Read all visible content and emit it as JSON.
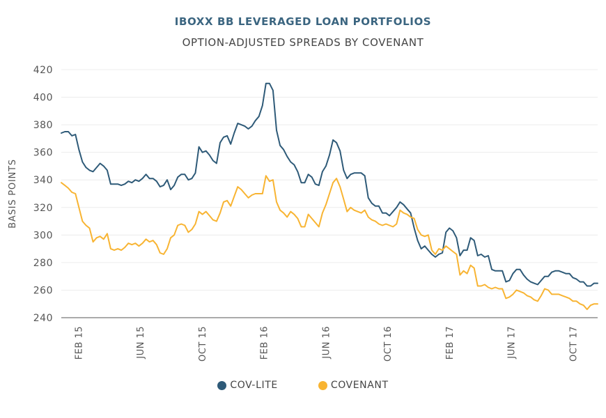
{
  "chart_data": {
    "type": "line",
    "title": "IBOXX BB LEVERAGED LOAN PORTFOLIOS",
    "subtitle": "OPTION-ADJUSTED SPREADS BY COVENANT",
    "xlabel": "",
    "ylabel": "BASIS POINTS",
    "ylim": [
      240,
      420
    ],
    "yticks": [
      240,
      260,
      280,
      300,
      320,
      340,
      360,
      380,
      400,
      420
    ],
    "x_range_months": [
      -1.1,
      33.6
    ],
    "xticks": [
      {
        "label": "FEB 15",
        "month": 0
      },
      {
        "label": "JUN 15",
        "month": 4
      },
      {
        "label": "OCT 15",
        "month": 8
      },
      {
        "label": "FEB 16",
        "month": 12
      },
      {
        "label": "JUN 16",
        "month": 16
      },
      {
        "label": "OCT 16",
        "month": 20
      },
      {
        "label": "FEB 17",
        "month": 24
      },
      {
        "label": "JUN 17",
        "month": 28
      },
      {
        "label": "OCT 17",
        "month": 32
      }
    ],
    "grid": true,
    "legend_position": "bottom-center",
    "series": [
      {
        "name": "COV-LITE",
        "color": "#2e5a78",
        "values": [
          374,
          375,
          375,
          372,
          373,
          362,
          353,
          349,
          347,
          346,
          349,
          352,
          350,
          347,
          337,
          337,
          337,
          336,
          337,
          339,
          338,
          340,
          339,
          341,
          344,
          341,
          341,
          339,
          335,
          336,
          340,
          333,
          336,
          342,
          344,
          344,
          340,
          341,
          345,
          364,
          360,
          361,
          358,
          354,
          352,
          367,
          371,
          372,
          366,
          374,
          381,
          380,
          379,
          377,
          379,
          383,
          386,
          394,
          410,
          410,
          405,
          376,
          365,
          362,
          357,
          353,
          351,
          346,
          338,
          338,
          344,
          342,
          337,
          336,
          346,
          350,
          358,
          369,
          367,
          361,
          347,
          341,
          344,
          345,
          345,
          345,
          343,
          327,
          323,
          321,
          321,
          316,
          316,
          314,
          317,
          320,
          324,
          322,
          319,
          316,
          305,
          296,
          290,
          292,
          289,
          286,
          284,
          286,
          287,
          302,
          305,
          303,
          298,
          285,
          289,
          289,
          298,
          296,
          285,
          286,
          284,
          285,
          275,
          274,
          274,
          274,
          266,
          267,
          272,
          275,
          275,
          271,
          268,
          266,
          265,
          264,
          267,
          270,
          270,
          273,
          274,
          274,
          273,
          272,
          272,
          269,
          268,
          266,
          266,
          263,
          263,
          265,
          265
        ]
      },
      {
        "name": "COVENANT",
        "color": "#f8b432",
        "values": [
          338,
          336,
          334,
          331,
          330,
          320,
          310,
          307,
          305,
          295,
          298,
          299,
          297,
          301,
          290,
          289,
          290,
          289,
          291,
          294,
          293,
          294,
          292,
          294,
          297,
          295,
          296,
          293,
          287,
          286,
          290,
          298,
          300,
          307,
          308,
          307,
          302,
          304,
          308,
          317,
          315,
          317,
          314,
          311,
          310,
          316,
          324,
          325,
          321,
          328,
          335,
          333,
          330,
          327,
          329,
          330,
          330,
          330,
          343,
          339,
          340,
          324,
          318,
          316,
          313,
          317,
          315,
          312,
          306,
          306,
          315,
          312,
          309,
          306,
          316,
          322,
          330,
          338,
          341,
          335,
          326,
          317,
          320,
          318,
          317,
          316,
          318,
          313,
          311,
          310,
          308,
          307,
          308,
          307,
          306,
          308,
          318,
          316,
          315,
          313,
          312,
          304,
          300,
          299,
          300,
          289,
          286,
          290,
          289,
          292,
          290,
          288,
          286,
          271,
          274,
          272,
          278,
          276,
          263,
          263,
          264,
          262,
          261,
          262,
          261,
          261,
          254,
          255,
          257,
          260,
          259,
          258,
          256,
          255,
          253,
          252,
          256,
          261,
          260,
          257,
          257,
          257,
          256,
          255,
          254,
          252,
          252,
          250,
          249,
          246,
          249,
          250,
          250
        ]
      }
    ]
  },
  "legend": {
    "items": [
      {
        "label": "COV-LITE",
        "color": "#2e5a78"
      },
      {
        "label": "COVENANT",
        "color": "#f8b432"
      }
    ]
  }
}
